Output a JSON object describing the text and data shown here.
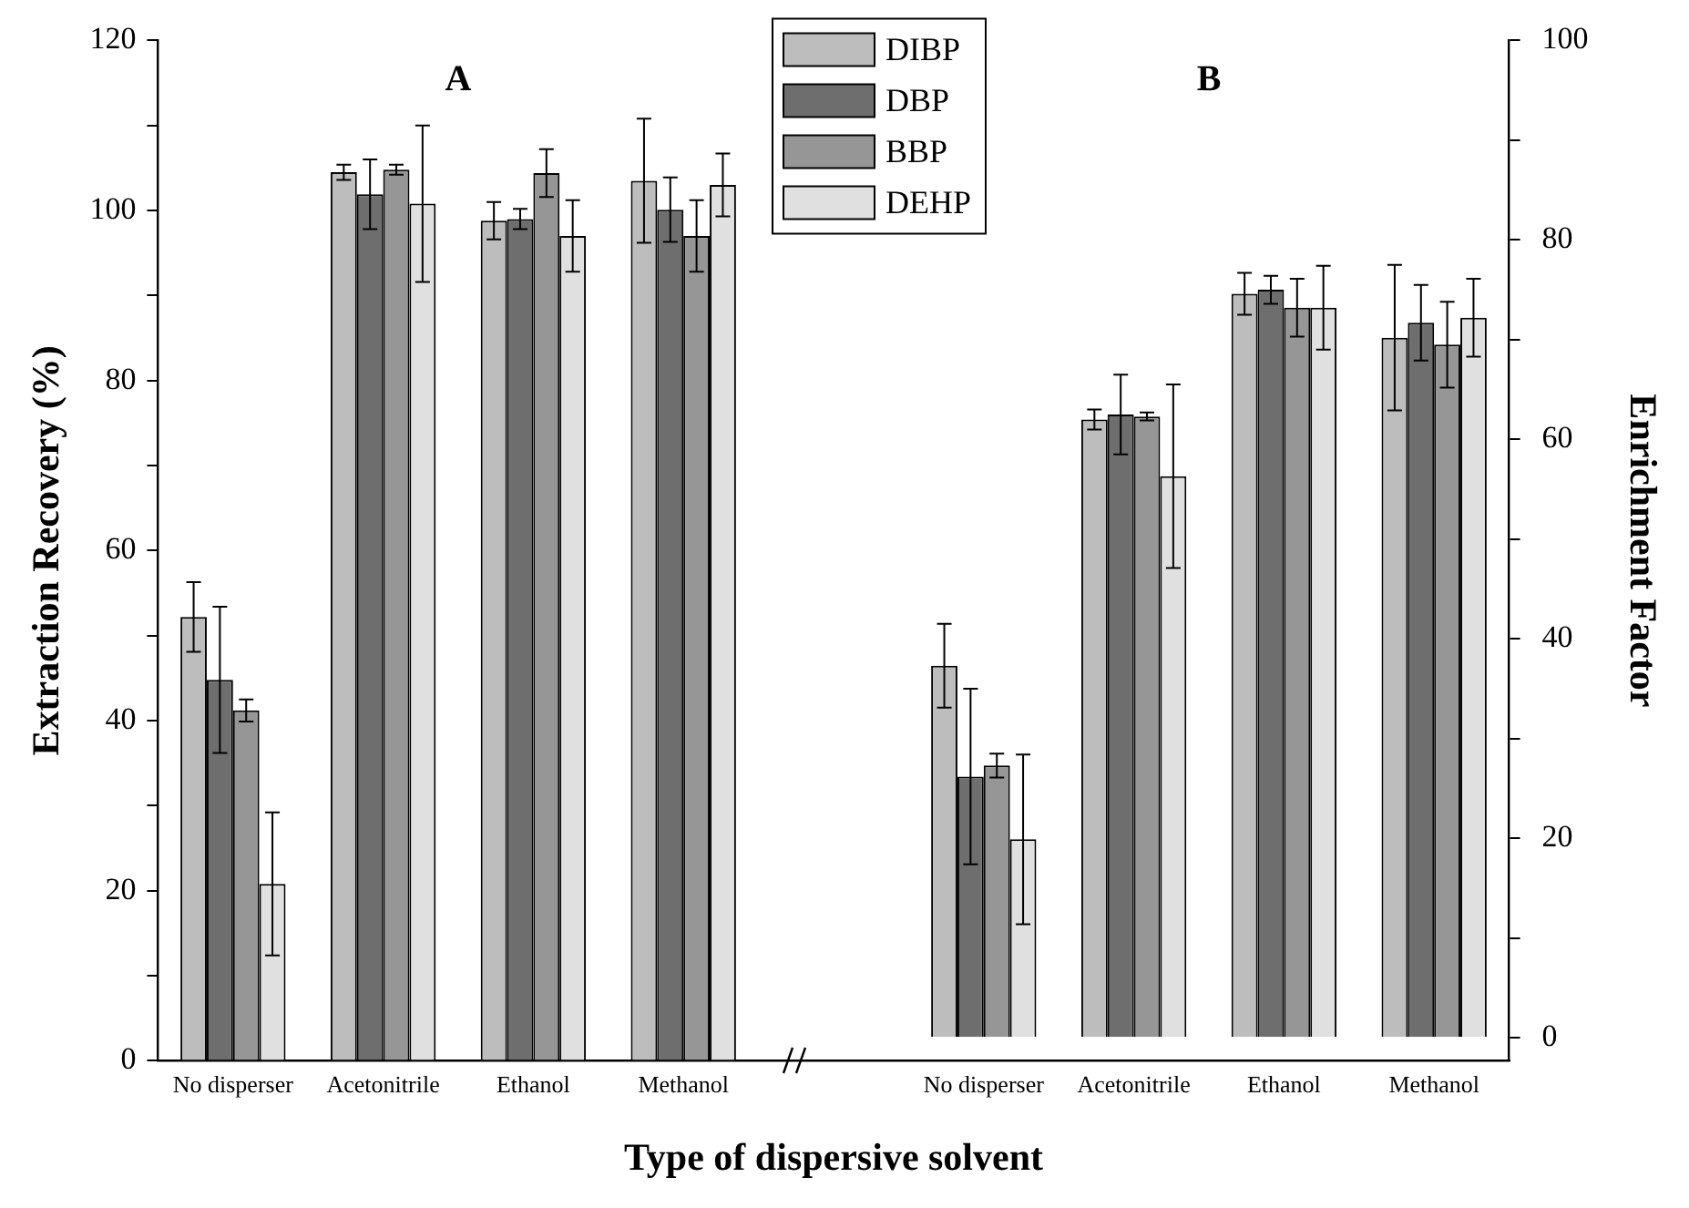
{
  "chart_data": {
    "type": "bar",
    "xlabel": "Type of dispersive solvent",
    "ylabel": "Extraction Recovery (%)",
    "y2label": "Enrichment Factor",
    "annotations": [
      "A",
      "B"
    ],
    "categories": [
      "No disperser",
      "Acetonitrile",
      "Ethanol",
      "Methanol",
      null,
      "No disperser",
      "Acetonitrile",
      "Ethanol",
      "Methanol"
    ],
    "series": [
      {
        "name": "DIBP",
        "color": "#bdbdbd",
        "values": [
          52.2,
          104.5,
          98.8,
          103.5,
          null,
          null,
          null,
          null,
          null
        ],
        "errors": [
          4.1,
          0.9,
          2.2,
          7.3,
          null,
          null,
          null,
          null,
          null
        ]
      },
      {
        "name": "DBP",
        "color": "#6e6e6e",
        "values": [
          44.8,
          101.9,
          99.0,
          100.1,
          null,
          null,
          null,
          null,
          null
        ],
        "errors": [
          8.6,
          4.1,
          1.2,
          3.8,
          null,
          null,
          null,
          null,
          null
        ]
      },
      {
        "name": "BBP",
        "color": "#969696",
        "values": [
          41.2,
          104.8,
          104.4,
          97.0,
          null,
          null,
          null,
          null,
          null
        ],
        "errors": [
          1.3,
          0.6,
          2.8,
          4.2,
          null,
          null,
          null,
          null,
          null
        ]
      },
      {
        "name": "DEHP",
        "color": "#e0e0e0",
        "values": [
          20.8,
          100.8,
          97.0,
          103.0,
          null,
          null,
          null,
          null,
          null
        ],
        "errors": [
          8.4,
          9.2,
          4.2,
          3.7,
          null,
          null,
          null,
          null,
          null
        ]
      },
      {
        "axis": "y2",
        "color": "#bdbdbd",
        "values": [
          null,
          null,
          null,
          null,
          null,
          37.3,
          62.0,
          74.6,
          70.2
        ],
        "errors": [
          null,
          null,
          null,
          null,
          null,
          4.2,
          1.0,
          2.1,
          7.3
        ]
      },
      {
        "axis": "y2",
        "color": "#6e6e6e",
        "values": [
          null,
          null,
          null,
          null,
          null,
          26.2,
          62.5,
          75.0,
          71.7
        ],
        "errors": [
          null,
          null,
          null,
          null,
          null,
          8.8,
          4.0,
          1.4,
          3.8
        ]
      },
      {
        "axis": "y2",
        "color": "#969696",
        "values": [
          null,
          null,
          null,
          null,
          null,
          27.3,
          62.3,
          73.2,
          69.5
        ],
        "errors": [
          null,
          null,
          null,
          null,
          null,
          1.2,
          0.4,
          2.9,
          4.3
        ]
      },
      {
        "axis": "y2",
        "color": "#e0e0e0",
        "values": [
          null,
          null,
          null,
          null,
          null,
          19.9,
          56.3,
          73.2,
          72.2
        ],
        "errors": [
          null,
          null,
          null,
          null,
          null,
          8.5,
          9.2,
          4.2,
          3.9
        ]
      }
    ],
    "ylim": [
      0,
      120
    ],
    "yticks": [
      0,
      {
        "value": 10,
        "label": null
      },
      20,
      {
        "value": 30,
        "label": null
      },
      40,
      {
        "value": 50,
        "label": null
      },
      60,
      {
        "value": 70,
        "label": null
      },
      80,
      {
        "value": 90,
        "label": null
      },
      100,
      {
        "value": 110,
        "label": null
      },
      120
    ],
    "y2lim": [
      -2.3,
      100
    ],
    "y2ticks": [
      0,
      {
        "value": 10,
        "label": null
      },
      20,
      {
        "value": 30,
        "label": null
      },
      40,
      {
        "value": 50,
        "label": null
      },
      60,
      {
        "value": 70,
        "label": null
      },
      80,
      {
        "value": 90,
        "label": null
      },
      100
    ],
    "legend": "top",
    "grid": false
  }
}
